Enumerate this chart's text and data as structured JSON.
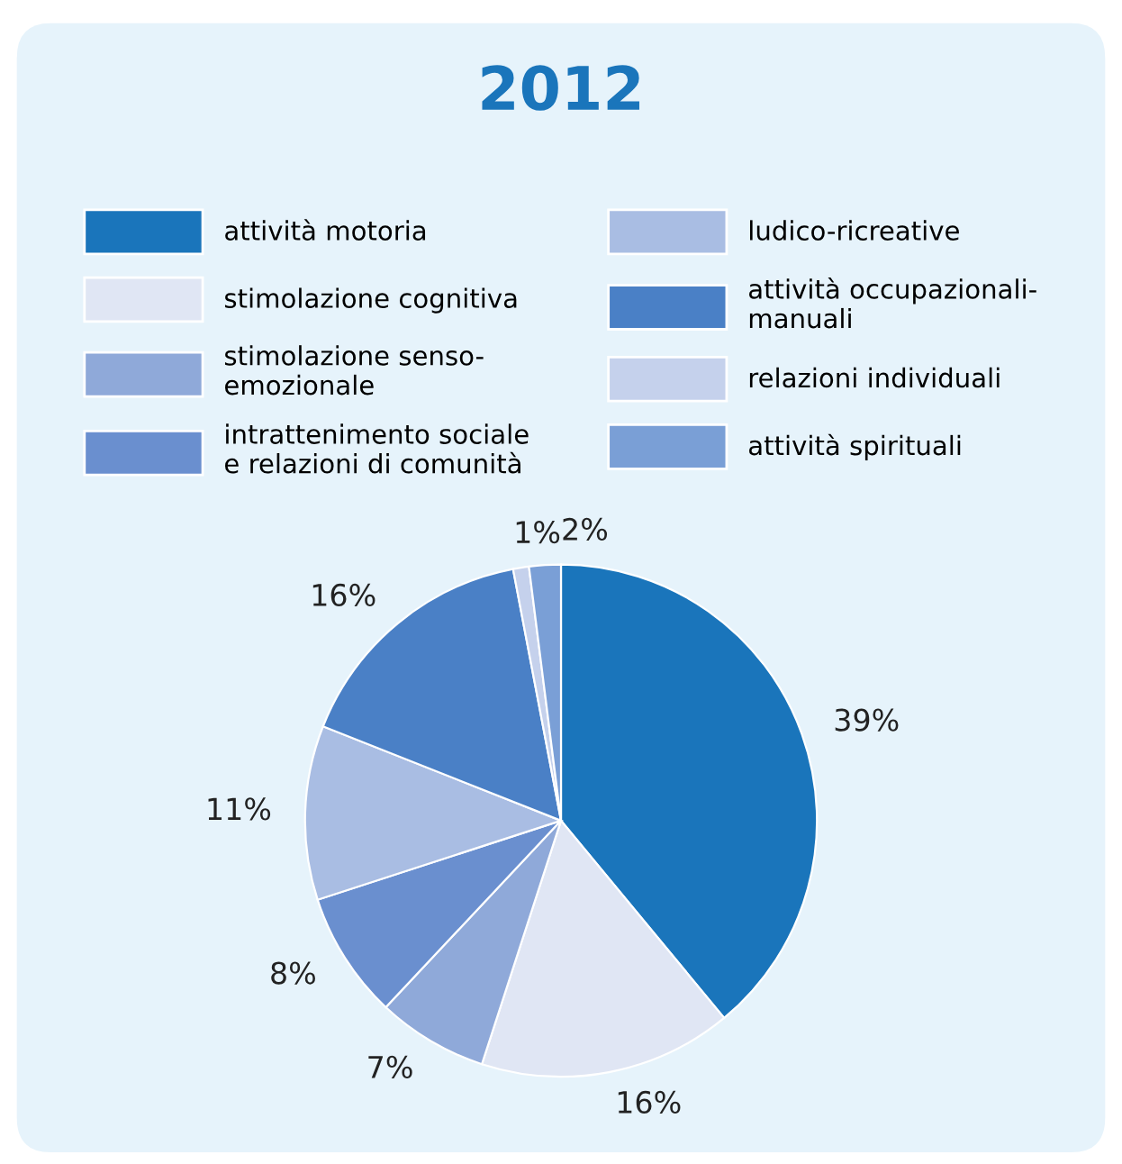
{
  "chart_data": {
    "type": "pie",
    "title": "2012",
    "categories": [
      "attività motoria",
      "stimolazione cognitiva",
      "stimolazione senso-\nemozionale",
      "intrattenimento sociale\ne relazioni di comunità",
      "ludico-ricreative",
      "attività occupazionali-\nmanuali",
      "relazioni individuali",
      "attività spirituali"
    ],
    "values": [
      39,
      16,
      7,
      8,
      11,
      16,
      1,
      2
    ],
    "value_labels": [
      "39%",
      "16%",
      "7%",
      "8%",
      "11%",
      "16%",
      "1%",
      "2%"
    ],
    "colors": [
      "#1a75bb",
      "#e0e6f4",
      "#8fa9d9",
      "#6a8fcf",
      "#a9bde3",
      "#4a80c6",
      "#c5d1ec",
      "#7a9fd6"
    ],
    "legend": "top"
  }
}
